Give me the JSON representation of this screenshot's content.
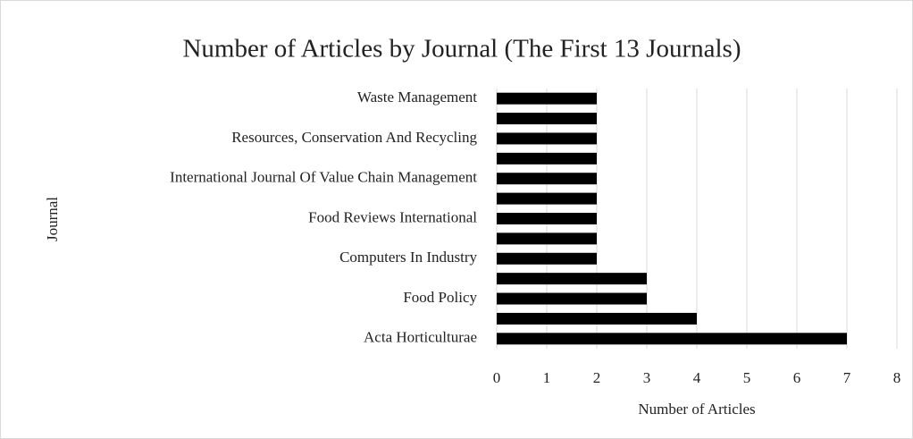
{
  "chart_data": {
    "type": "bar",
    "orientation": "horizontal",
    "title": "Number of Articles by Journal (The First 13 Journals)",
    "x_label": "Number of Articles",
    "y_label": "Journal",
    "categories": [
      "Acta Horticulturae",
      null,
      "Food Policy",
      null,
      "Computers In Industry",
      null,
      "Food Reviews International",
      null,
      "International Journal Of Value Chain Management",
      null,
      "Resources, Conservation And Recycling",
      null,
      "Waste Management"
    ],
    "values": [
      7,
      4,
      3,
      3,
      2,
      2,
      2,
      2,
      2,
      2,
      2,
      2,
      2
    ],
    "color": "#000000",
    "xlim": [
      0,
      8
    ],
    "xticks": [
      0,
      1,
      2,
      3,
      4,
      5,
      6,
      7,
      8
    ],
    "grid": true
  }
}
